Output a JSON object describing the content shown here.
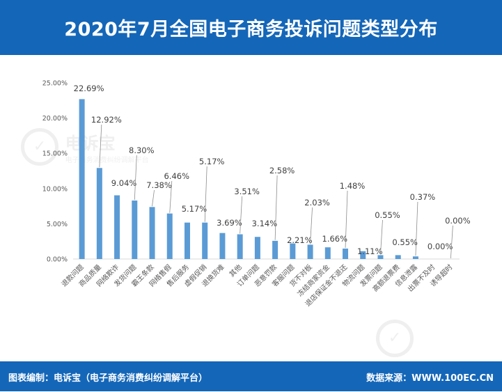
{
  "header": {
    "title": "2020年7月全国电子商务投诉问题类型分布"
  },
  "footer": {
    "left": "图表编制：电诉宝（电子商务消费纠纷调解平台）",
    "right": "数据来源：WWW.100EC.CN"
  },
  "watermark": {
    "main": "电诉宝",
    "sub": "电子商务消费纠纷调解平台"
  },
  "colors": {
    "header_bg": "#1466b8",
    "bar": "#5b9bd5",
    "axis_text": "#595959",
    "label_text": "#404040"
  },
  "chart_data": {
    "type": "bar",
    "title": "2020年7月全国电子商务投诉问题类型分布",
    "xlabel": "",
    "ylabel": "",
    "ylim": [
      0,
      25
    ],
    "yticks": [
      "0.00%",
      "5.00%",
      "10.00%",
      "15.00%",
      "20.00%",
      "25.00%"
    ],
    "grid": false,
    "categories": [
      "退款问题",
      "商品质量",
      "网络欺诈",
      "发货问题",
      "霸王条款",
      "网络售假",
      "售后服务",
      "虚假促销",
      "退换货难",
      "其他",
      "订单问题",
      "恶意罚款",
      "客服问题",
      "货不对板",
      "冻结商家资金",
      "退店保证金不退还",
      "物流问题",
      "发票问题",
      "高额退票费",
      "信息泄露",
      "出票不及时",
      "诱导超时"
    ],
    "values": [
      22.69,
      12.92,
      9.04,
      8.3,
      7.38,
      6.46,
      5.17,
      5.17,
      3.69,
      3.51,
      3.14,
      2.58,
      2.21,
      2.03,
      1.66,
      1.48,
      1.11,
      0.55,
      0.55,
      0.37,
      0.0,
      0.0
    ],
    "data_labels": [
      "22.69%",
      "12.92%",
      "9.04%",
      "8.30%",
      "7.38%",
      "6.46%",
      "5.17%",
      "5.17%",
      "3.69%",
      "3.51%",
      "3.14%",
      "2.58%",
      "2.21%",
      "2.03%",
      "1.66%",
      "1.48%",
      "1.11%",
      "0.55%",
      "0.55%",
      "0.37%",
      "0.00%",
      "0.00%"
    ]
  }
}
